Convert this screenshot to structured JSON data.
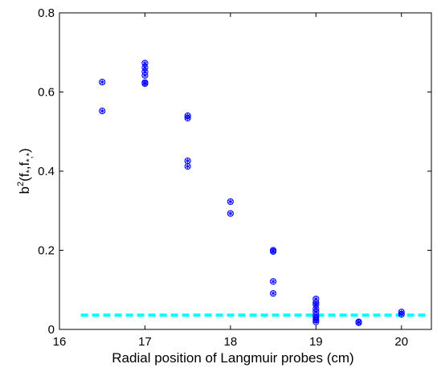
{
  "chart_data": {
    "type": "scatter",
    "xlabel": "Radial position of Langmuir probes (cm)",
    "ylabel": {
      "base": "b",
      "sup": "2",
      "rest": "(f",
      "sub1": "*",
      "mid": ",f",
      "sub2": "*",
      "comma": ",",
      "sub3": "*",
      "close": ")"
    },
    "xlim": [
      16,
      20.35
    ],
    "ylim": [
      0,
      0.8
    ],
    "xticks": [
      16,
      17,
      18,
      19,
      20
    ],
    "yticks": [
      0,
      0.2,
      0.4,
      0.6,
      0.8
    ],
    "xtick_labels": [
      "16",
      "17",
      "18",
      "19",
      "20"
    ],
    "ytick_labels": [
      "0",
      "0.2",
      "0.4",
      "0.6",
      "0.8"
    ],
    "grid": false,
    "series": [
      {
        "marker": "circle-asterisk",
        "color": "#0000ff",
        "points": [
          [
            16.5,
            0.625
          ],
          [
            16.5,
            0.552
          ],
          [
            17.0,
            0.673
          ],
          [
            17.0,
            0.662
          ],
          [
            17.0,
            0.651
          ],
          [
            17.0,
            0.642
          ],
          [
            17.0,
            0.624
          ],
          [
            17.0,
            0.621
          ],
          [
            17.5,
            0.54
          ],
          [
            17.5,
            0.534
          ],
          [
            17.5,
            0.426
          ],
          [
            17.5,
            0.412
          ],
          [
            18.0,
            0.323
          ],
          [
            18.0,
            0.293
          ],
          [
            18.5,
            0.2
          ],
          [
            18.5,
            0.197
          ],
          [
            18.5,
            0.121
          ],
          [
            18.5,
            0.091
          ],
          [
            19.0,
            0.077
          ],
          [
            19.0,
            0.068
          ],
          [
            19.0,
            0.063
          ],
          [
            19.0,
            0.052
          ],
          [
            19.0,
            0.045
          ],
          [
            19.0,
            0.036
          ],
          [
            19.0,
            0.03
          ],
          [
            19.0,
            0.024
          ],
          [
            19.0,
            0.019
          ],
          [
            19.5,
            0.019
          ],
          [
            19.5,
            0.017
          ],
          [
            20.0,
            0.044
          ],
          [
            20.0,
            0.038
          ]
        ]
      }
    ],
    "reference_lines": [
      {
        "style": "dashed",
        "color": "#00ffff",
        "y": 0.036,
        "x_start": 16.25,
        "x_end": 20.3
      }
    ]
  }
}
